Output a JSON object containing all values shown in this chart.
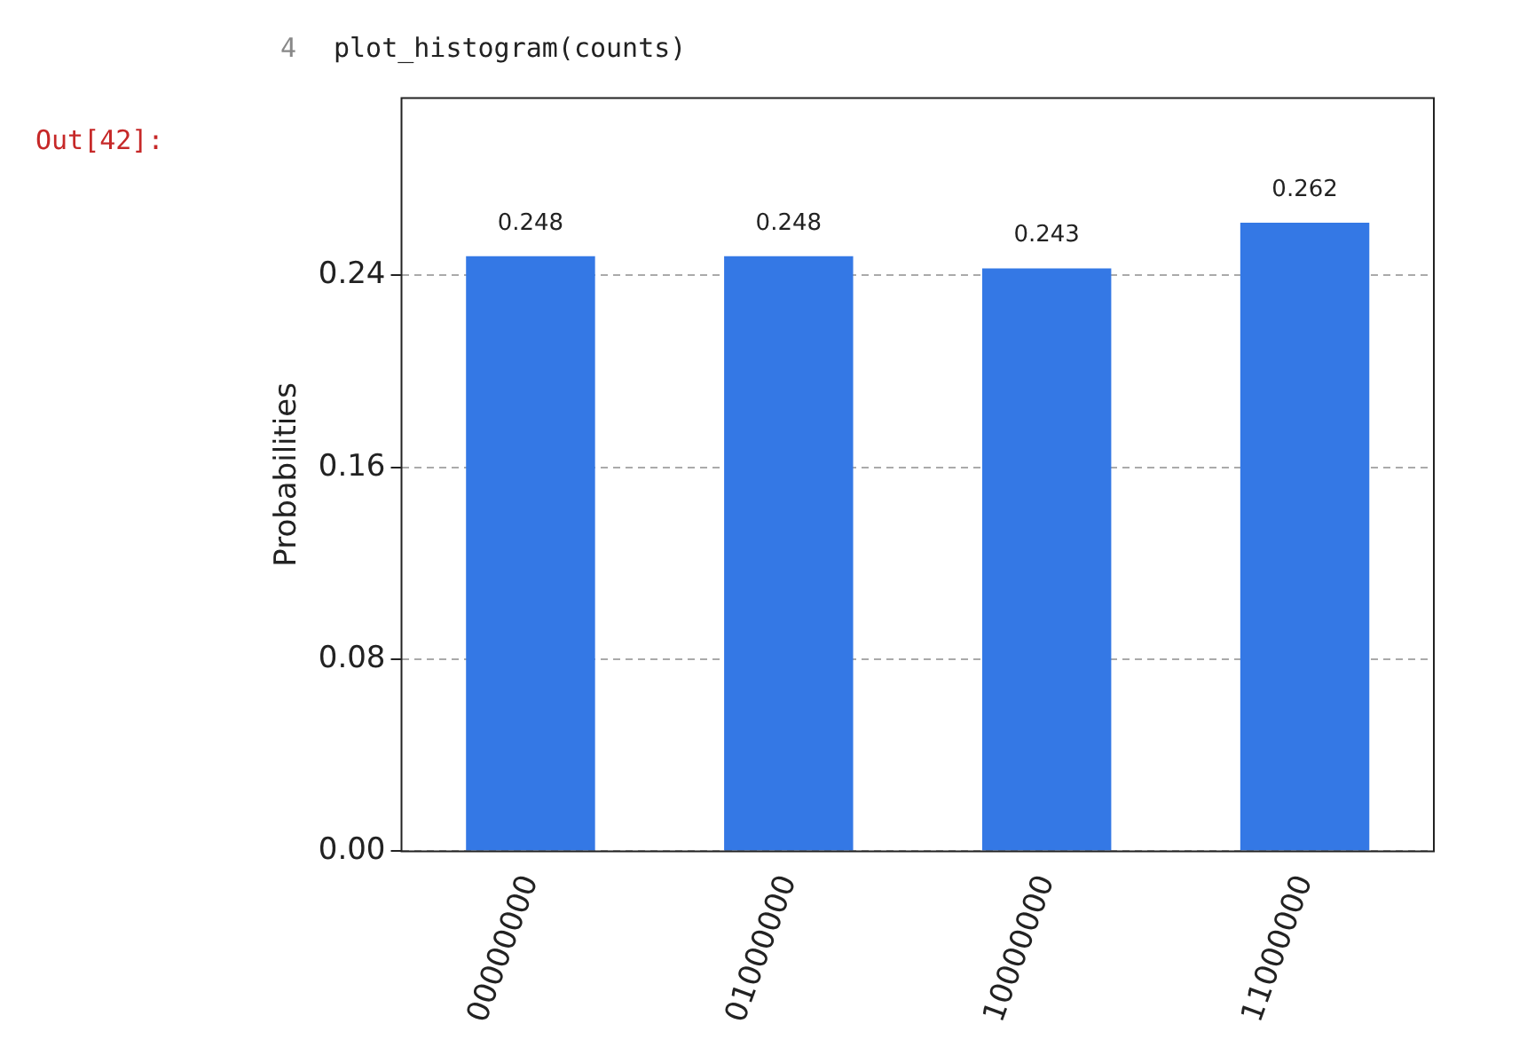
{
  "chart_data": {
    "type": "bar",
    "ylabel": "Probabilities",
    "categories": [
      "00000000",
      "01000000",
      "10000000",
      "11000000"
    ],
    "values": [
      0.248,
      0.248,
      0.243,
      0.262
    ],
    "color": "#3478e5",
    "ylim": [
      0,
      0.314
    ],
    "yticks": [
      {
        "value": 0,
        "label": "0.00"
      },
      {
        "value": 0.08,
        "label": "0.08"
      },
      {
        "value": 0.16,
        "label": "0.16"
      },
      {
        "value": 0.24,
        "label": "0.24"
      }
    ],
    "grid": "y",
    "data_labels": true,
    "annotations": [
      "4",
      "plot_histogram(counts)",
      "Out[42]:"
    ]
  }
}
